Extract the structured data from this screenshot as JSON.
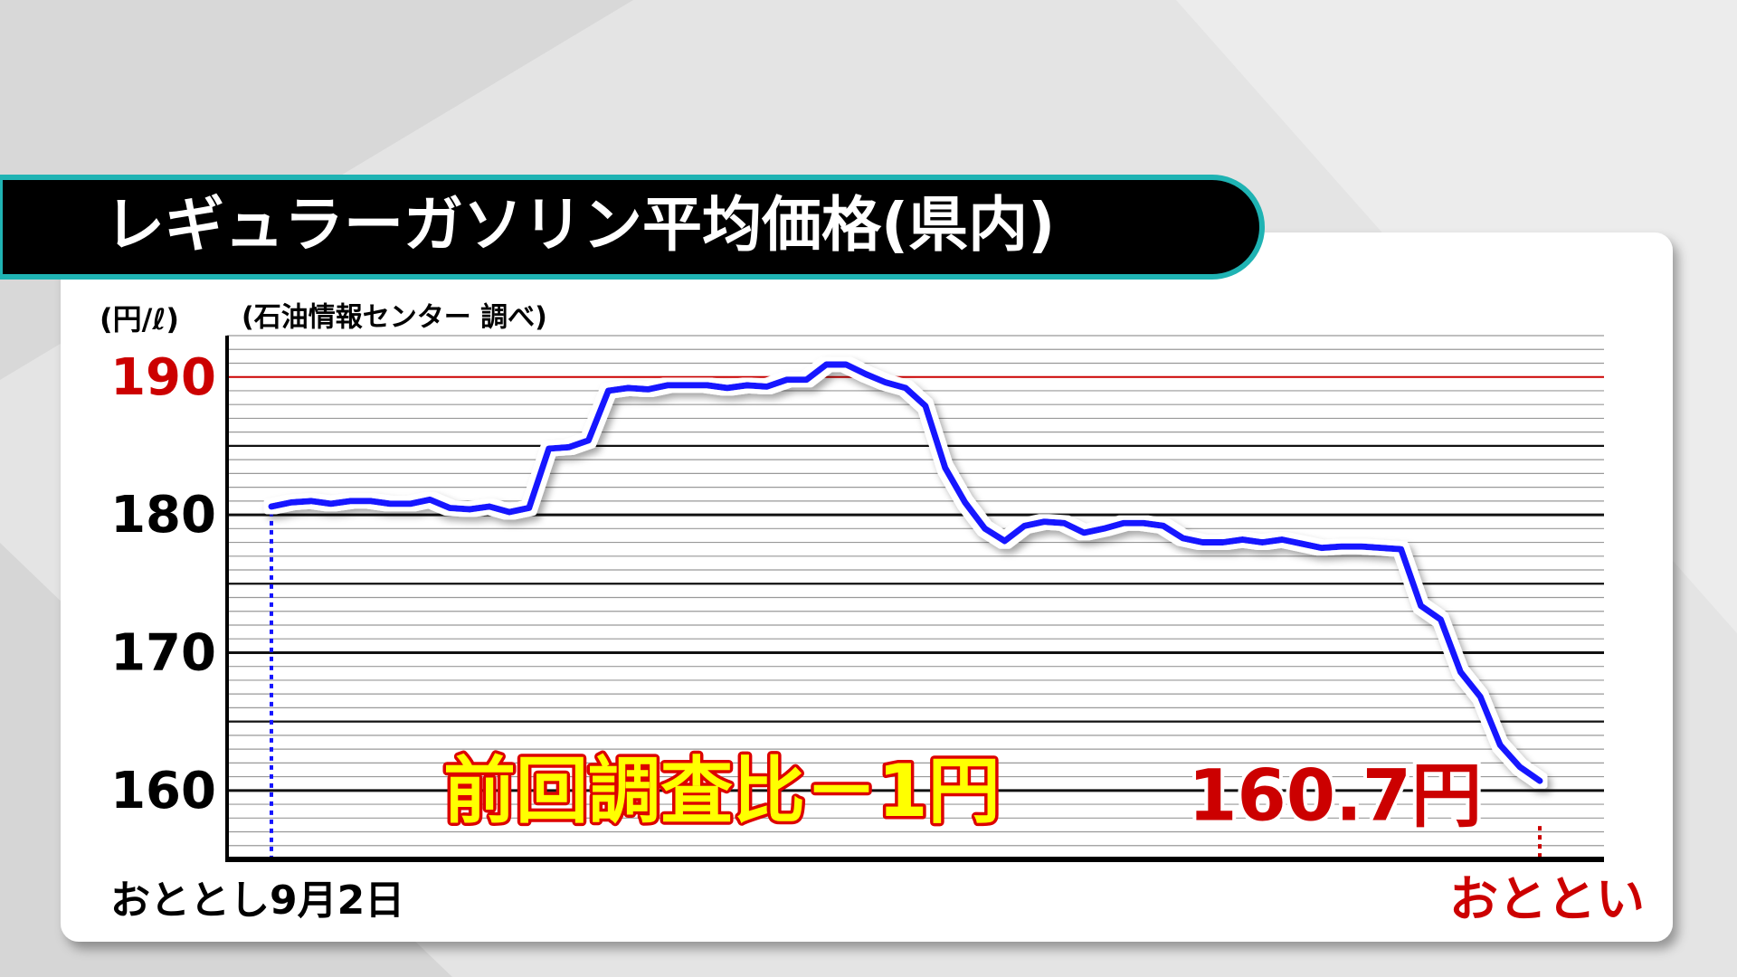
{
  "chart_data": {
    "type": "line",
    "title": "レギュラーガソリン平均価格(県内)",
    "y_unit": "(円/ℓ)",
    "source": "(石油情報センター 調べ)",
    "annotation": "前回調査比－1円",
    "categories": [
      "おととし9月2日",
      null,
      null,
      null,
      null,
      null,
      null,
      null,
      null,
      null,
      null,
      null,
      null,
      null,
      null,
      null,
      null,
      null,
      null,
      null,
      null,
      null,
      null,
      null,
      null,
      null,
      null,
      null,
      null,
      null,
      null,
      null,
      null,
      null,
      null,
      null,
      null,
      null,
      null,
      null,
      null,
      null,
      null,
      null,
      null,
      null,
      null,
      null,
      null,
      null,
      null,
      null,
      null,
      null,
      null,
      null,
      null,
      null,
      null,
      null,
      null,
      null,
      null,
      null,
      "おととい"
    ],
    "values": [
      180.6,
      180.9,
      181.0,
      180.8,
      181.0,
      181.0,
      180.8,
      180.8,
      181.1,
      180.5,
      180.4,
      180.6,
      180.2,
      180.5,
      184.8,
      184.9,
      185.4,
      189.0,
      189.2,
      189.1,
      189.4,
      189.4,
      189.4,
      189.2,
      189.4,
      189.3,
      189.8,
      189.8,
      190.9,
      190.9,
      190.2,
      189.6,
      189.2,
      187.9,
      183.4,
      180.9,
      179.0,
      178.1,
      179.2,
      179.5,
      179.4,
      178.7,
      179.0,
      179.4,
      179.4,
      179.2,
      178.3,
      178.0,
      178.0,
      178.2,
      178.0,
      178.2,
      177.9,
      177.6,
      177.7,
      177.7,
      177.6,
      177.5,
      173.4,
      172.4,
      168.6,
      166.8,
      163.3,
      161.7,
      160.7
    ],
    "value_labels": [
      null,
      null,
      null,
      null,
      null,
      null,
      null,
      null,
      null,
      null,
      null,
      null,
      null,
      null,
      null,
      null,
      null,
      null,
      null,
      null,
      null,
      null,
      null,
      null,
      null,
      null,
      null,
      null,
      null,
      null,
      null,
      null,
      null,
      null,
      null,
      null,
      null,
      null,
      null,
      null,
      null,
      null,
      null,
      null,
      null,
      null,
      null,
      null,
      null,
      null,
      null,
      null,
      null,
      null,
      null,
      null,
      null,
      null,
      null,
      null,
      null,
      null,
      null,
      null,
      "160.7円"
    ],
    "color": "#1414ff",
    "ylim": [
      155,
      193
    ],
    "yticks": [
      160,
      170,
      180,
      190
    ],
    "highlight_ytick": 190,
    "highlight_color": "#cc0000",
    "grid": true,
    "minor_grid_step": 1,
    "major_grid_step": 5
  }
}
